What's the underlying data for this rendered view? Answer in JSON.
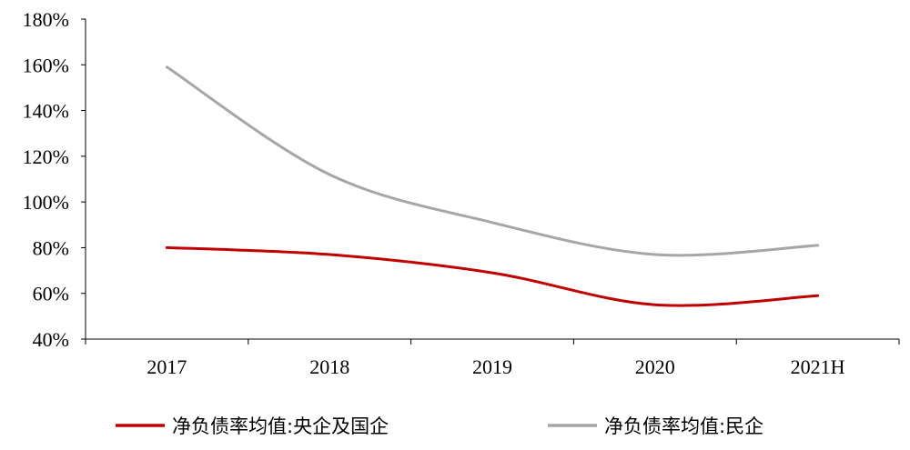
{
  "chart_data": {
    "type": "line",
    "categories": [
      "2017",
      "2018",
      "2019",
      "2020",
      "2021H"
    ],
    "series": [
      {
        "name": "净负债率均值:央企及国企",
        "values": [
          80,
          77,
          69,
          55,
          59
        ],
        "color": "#c00000"
      },
      {
        "name": "净负债率均值:民企",
        "values": [
          159,
          112,
          91,
          77,
          81
        ],
        "color": "#a6a6a6"
      }
    ],
    "y_ticks": [
      "40%",
      "60%",
      "80%",
      "100%",
      "120%",
      "140%",
      "160%",
      "180%"
    ],
    "ylim": [
      40,
      180
    ],
    "grid": false,
    "legend_position": "bottom",
    "smooth": true
  }
}
